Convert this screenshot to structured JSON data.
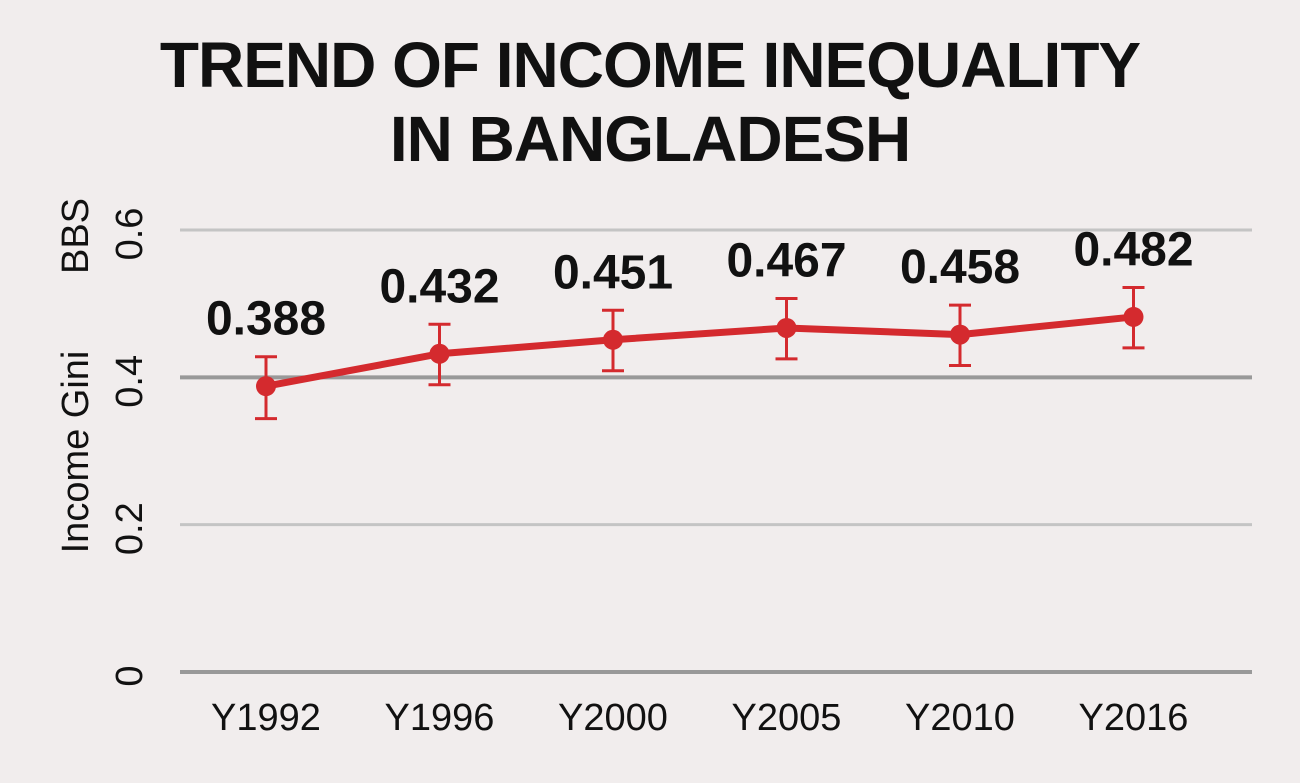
{
  "chart_data": {
    "type": "line",
    "title_lines": [
      "TREND OF INCOME INEQUALITY",
      "IN BANGLADESH"
    ],
    "ylabel_lines": [
      "BBS",
      "Income Gini"
    ],
    "categories": [
      "Y1992",
      "Y1996",
      "Y2000",
      "Y2005",
      "Y2010",
      "Y2016"
    ],
    "series": [
      {
        "values": [
          0.388,
          0.432,
          0.451,
          0.467,
          0.458,
          0.482
        ],
        "labels": [
          "0.388",
          "0.432",
          "0.451",
          "0.467",
          "0.458",
          "0.482"
        ],
        "error_low": [
          0.344,
          0.39,
          0.409,
          0.425,
          0.416,
          0.44
        ],
        "error_high": [
          0.428,
          0.472,
          0.491,
          0.507,
          0.498,
          0.522
        ],
        "color": "#d42a2e"
      }
    ],
    "yticks": [
      "0",
      "0.2",
      "0.4",
      "0.6"
    ],
    "ylim": [
      0,
      0.6
    ],
    "grid": true,
    "colors": {
      "background": "#f1eded",
      "grid_light": "#c4c4c4",
      "grid_dark": "#999999",
      "line": "#d42a2e"
    }
  }
}
